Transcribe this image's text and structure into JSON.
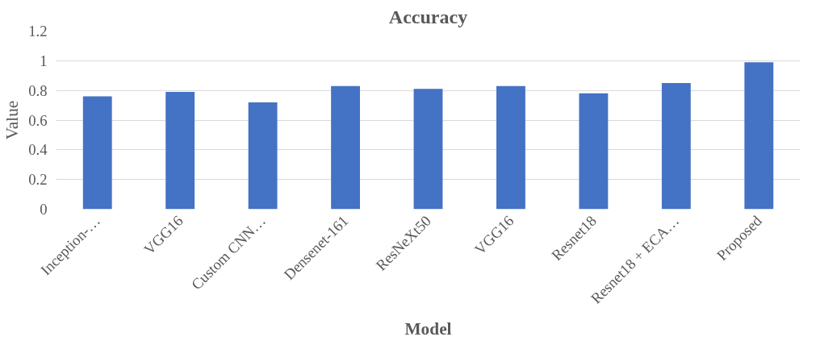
{
  "chart_data": {
    "type": "bar",
    "title": "Accuracy",
    "xlabel": "Model",
    "ylabel": "Value",
    "categories": [
      "Inception-…",
      "VGG16",
      "Custom CNN…",
      "Densenet-161",
      "ResNeXt50",
      "VGG16",
      "Resnet18",
      "Resnet18 + ECA…",
      "Proposed"
    ],
    "values": [
      0.76,
      0.79,
      0.72,
      0.83,
      0.81,
      0.83,
      0.78,
      0.85,
      0.99
    ],
    "color": "#4472c4",
    "ylim": [
      0,
      1.2
    ],
    "yticks": [
      0,
      0.2,
      0.4,
      0.6,
      0.8,
      1,
      1.2
    ],
    "grid": "y"
  }
}
